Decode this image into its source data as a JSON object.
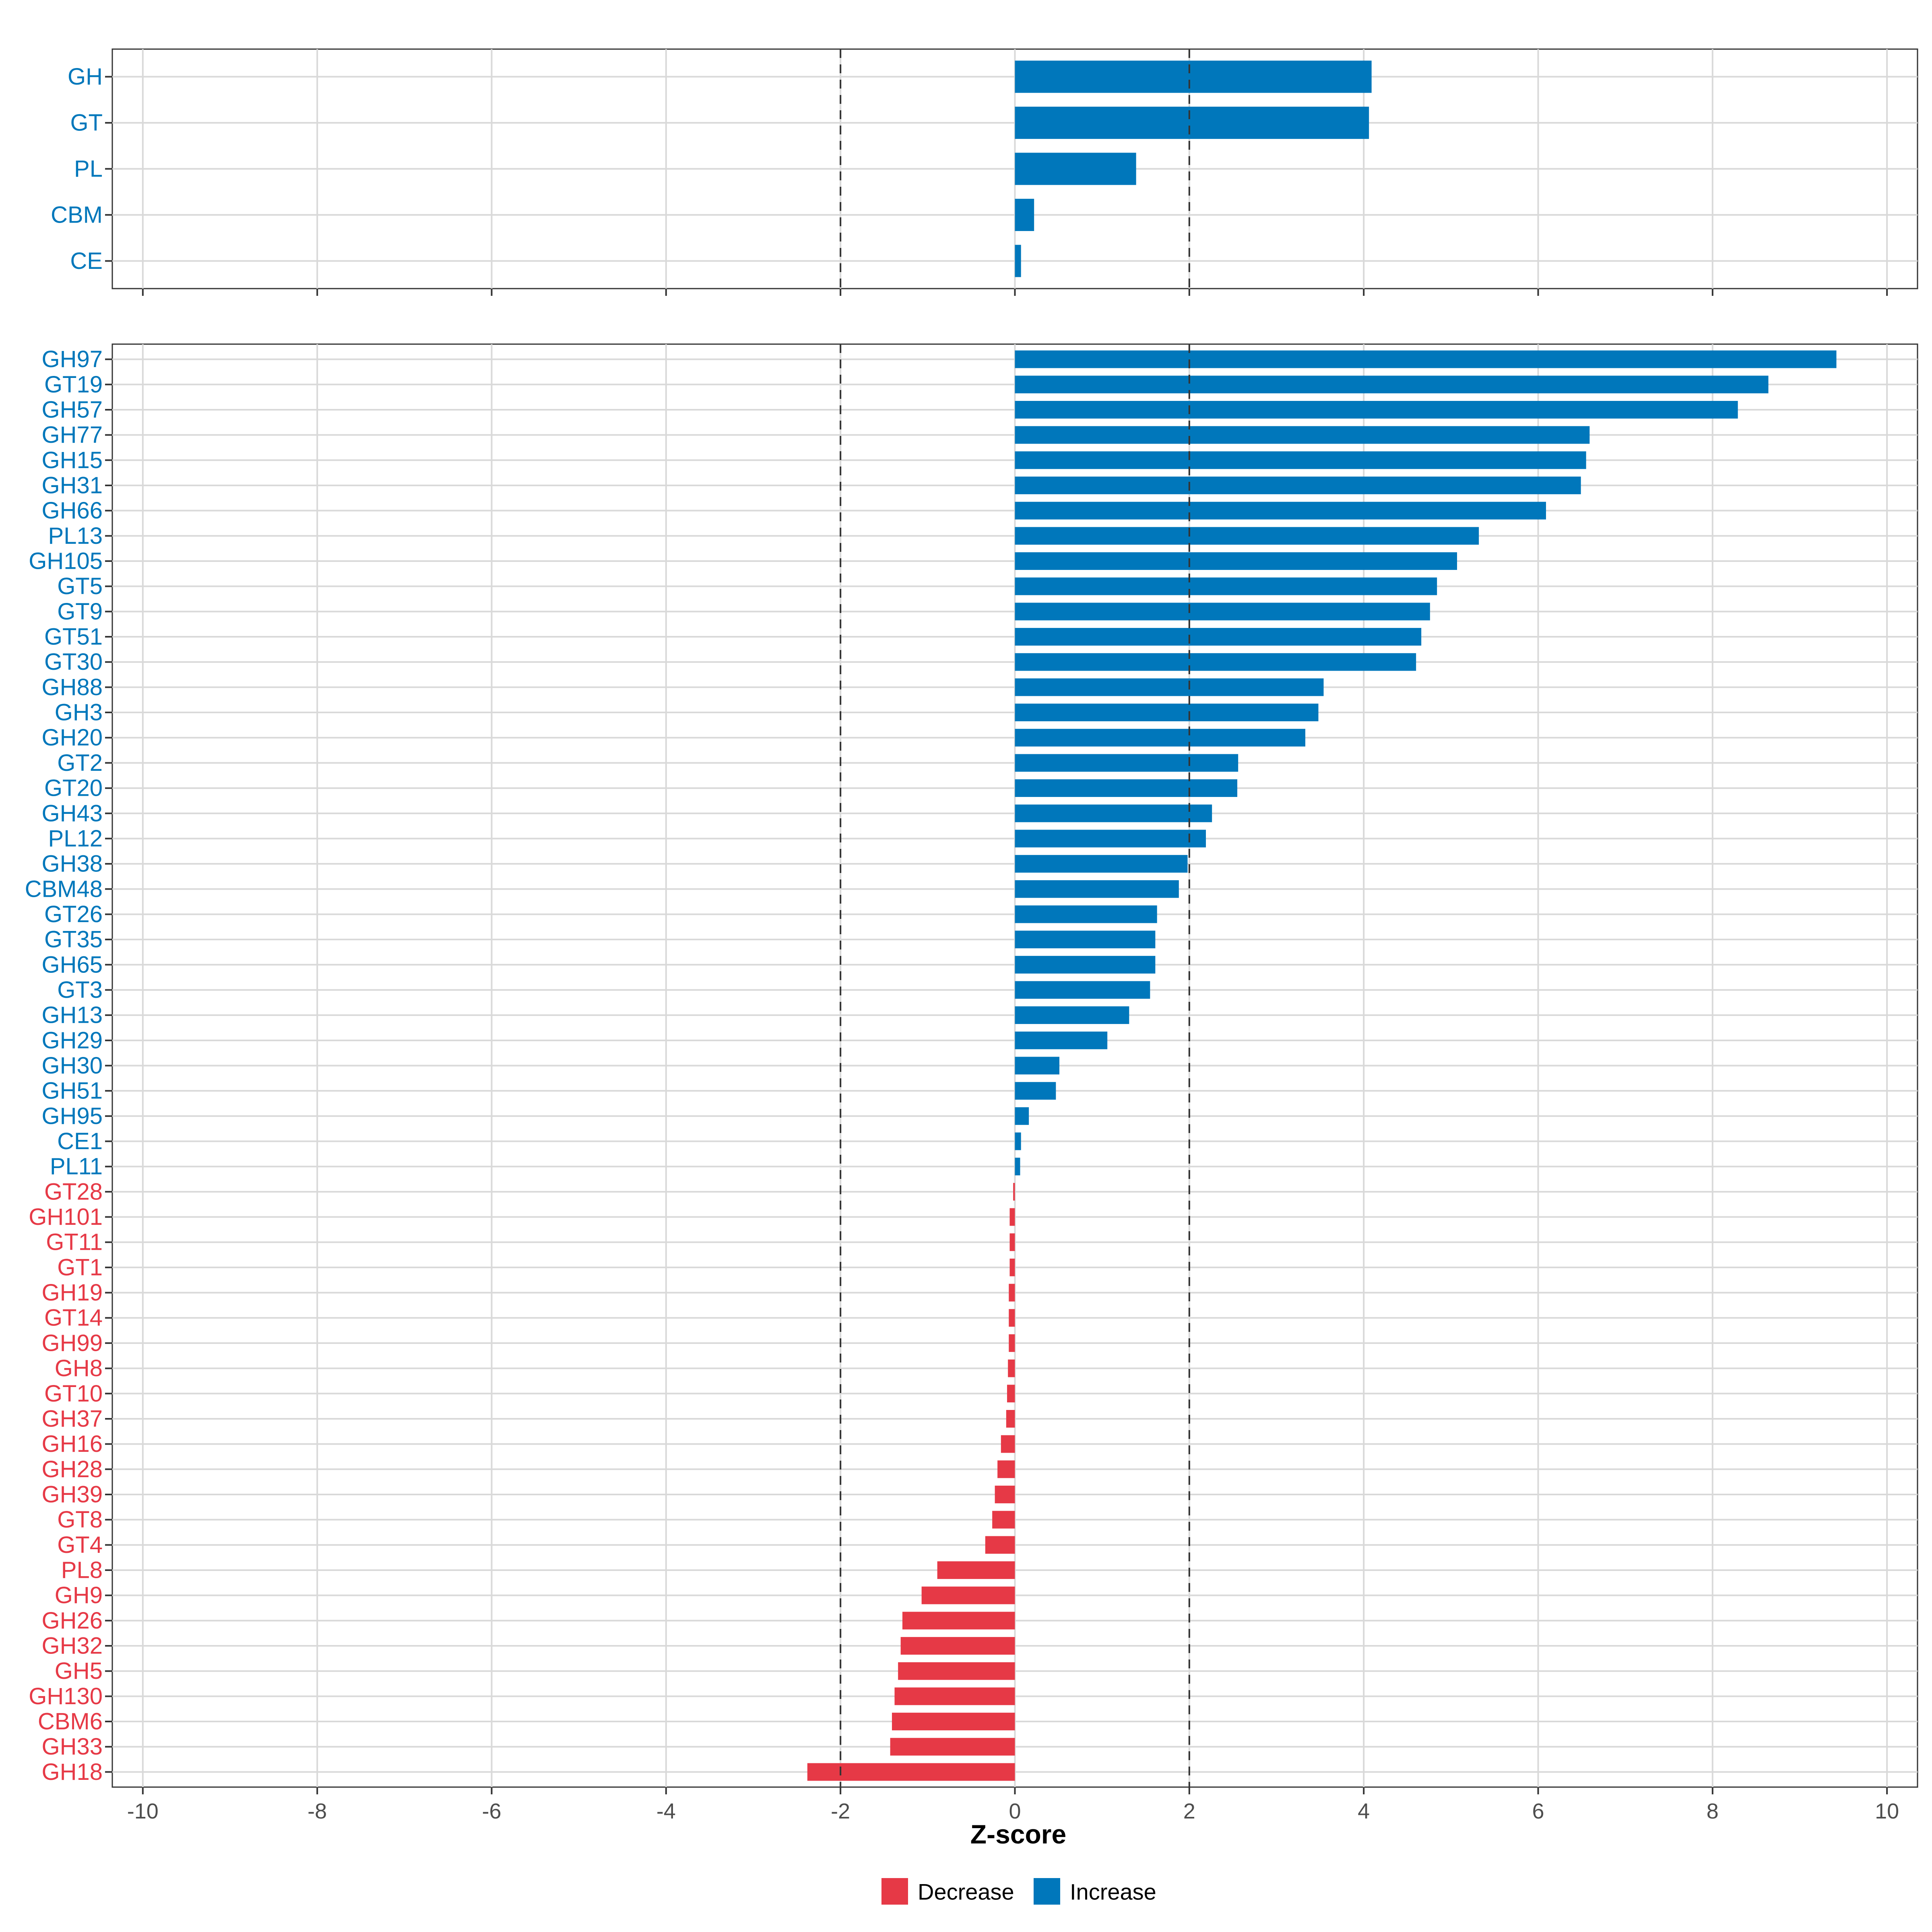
{
  "chart_data": {
    "type": "bar",
    "orientation": "horizontal",
    "xlabel": "Z-score",
    "xlim": [
      -10.35,
      10.35
    ],
    "xticks": [
      -10,
      -8,
      -6,
      -4,
      -2,
      0,
      2,
      4,
      6,
      8,
      10
    ],
    "reference_lines": [
      -2,
      2
    ],
    "colors": {
      "Increase": "#0077bb",
      "Decrease": "#e63946"
    },
    "legend": {
      "position": "bottom",
      "items": [
        {
          "label": "Decrease",
          "color": "#e63946"
        },
        {
          "label": "Increase",
          "color": "#0077bb"
        }
      ]
    },
    "panels": [
      {
        "name": "class",
        "categories": [
          "GH",
          "GT",
          "PL",
          "CBM",
          "CE"
        ],
        "values": [
          4.09,
          4.06,
          1.39,
          0.22,
          0.07
        ]
      },
      {
        "name": "family",
        "categories": [
          "GH97",
          "GT19",
          "GH57",
          "GH77",
          "GH15",
          "GH31",
          "GH66",
          "PL13",
          "GH105",
          "GT5",
          "GT9",
          "GT51",
          "GT30",
          "GH88",
          "GH3",
          "GH20",
          "GT2",
          "GT20",
          "GH43",
          "PL12",
          "GH38",
          "CBM48",
          "GT26",
          "GT35",
          "GH65",
          "GT3",
          "GH13",
          "GH29",
          "GH30",
          "GH51",
          "GH95",
          "CE1",
          "PL11",
          "GT28",
          "GH101",
          "GT11",
          "GT1",
          "GH19",
          "GT14",
          "GH99",
          "GH8",
          "GT10",
          "GH37",
          "GH16",
          "GH28",
          "GH39",
          "GT8",
          "GT4",
          "PL8",
          "GH9",
          "GH26",
          "GH32",
          "GH5",
          "GH130",
          "CBM6",
          "GH33",
          "GH18"
        ],
        "values": [
          9.42,
          8.64,
          8.29,
          6.59,
          6.55,
          6.49,
          6.09,
          5.32,
          5.07,
          4.84,
          4.76,
          4.66,
          4.6,
          3.54,
          3.48,
          3.33,
          2.56,
          2.55,
          2.26,
          2.19,
          1.98,
          1.88,
          1.63,
          1.61,
          1.61,
          1.55,
          1.31,
          1.06,
          0.51,
          0.47,
          0.16,
          0.07,
          0.06,
          -0.02,
          -0.06,
          -0.06,
          -0.06,
          -0.07,
          -0.07,
          -0.07,
          -0.08,
          -0.09,
          -0.1,
          -0.16,
          -0.2,
          -0.23,
          -0.26,
          -0.34,
          -0.89,
          -1.07,
          -1.29,
          -1.31,
          -1.34,
          -1.38,
          -1.41,
          -1.43,
          -2.38
        ]
      }
    ]
  }
}
